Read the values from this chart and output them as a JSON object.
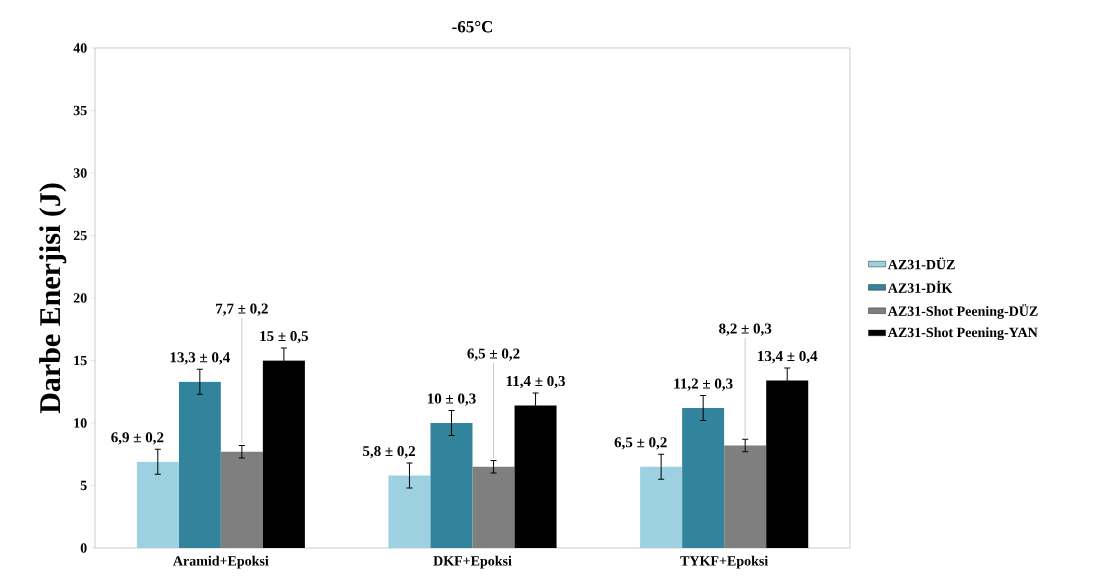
{
  "chart_data": {
    "type": "bar",
    "title": "-65°C",
    "ylabel": "Darbe Enerjisi (J)",
    "categories": [
      "Aramid+Epoksi",
      "DKF+Epoksi",
      "TYKF+Epoksi"
    ],
    "series": [
      {
        "name": "AZ31-DÜZ",
        "color": "#9dd0e0",
        "values": [
          6.9,
          5.8,
          6.5
        ],
        "errors": [
          1,
          1,
          1
        ],
        "value_labels": [
          "6,9 ± 0,2",
          "5,8 ± 0,2",
          "6,5 ± 0,2"
        ]
      },
      {
        "name": "AZ31-DİK",
        "color": "#31849b",
        "values": [
          13.3,
          10,
          11.2
        ],
        "errors": [
          1,
          1,
          1
        ],
        "value_labels": [
          "13,3 ± 0,4",
          "10 ± 0,3",
          "11,2 ± 0,3"
        ]
      },
      {
        "name": "AZ31-Shot Peening-DÜZ",
        "color": "#7f7f7f",
        "values": [
          7.7,
          6.5,
          8.2
        ],
        "errors": [
          0.5,
          0.5,
          0.5
        ],
        "value_labels": [
          "7,7 ± 0,2",
          "6,5 ± 0,2",
          "8,2 ± 0,3"
        ]
      },
      {
        "name": "AZ31-Shot Peening-YAN",
        "color": "#000000",
        "values": [
          15,
          11.4,
          13.4
        ],
        "errors": [
          1,
          1,
          1
        ],
        "value_labels": [
          "15 ± 0,5",
          "11,4 ± 0,3",
          "13,4 ± 0,4"
        ]
      }
    ],
    "ylim": [
      0,
      40
    ],
    "yticks": [
      0,
      5,
      10,
      15,
      20,
      25,
      30,
      35,
      40
    ],
    "grid": false,
    "legend": "right"
  }
}
